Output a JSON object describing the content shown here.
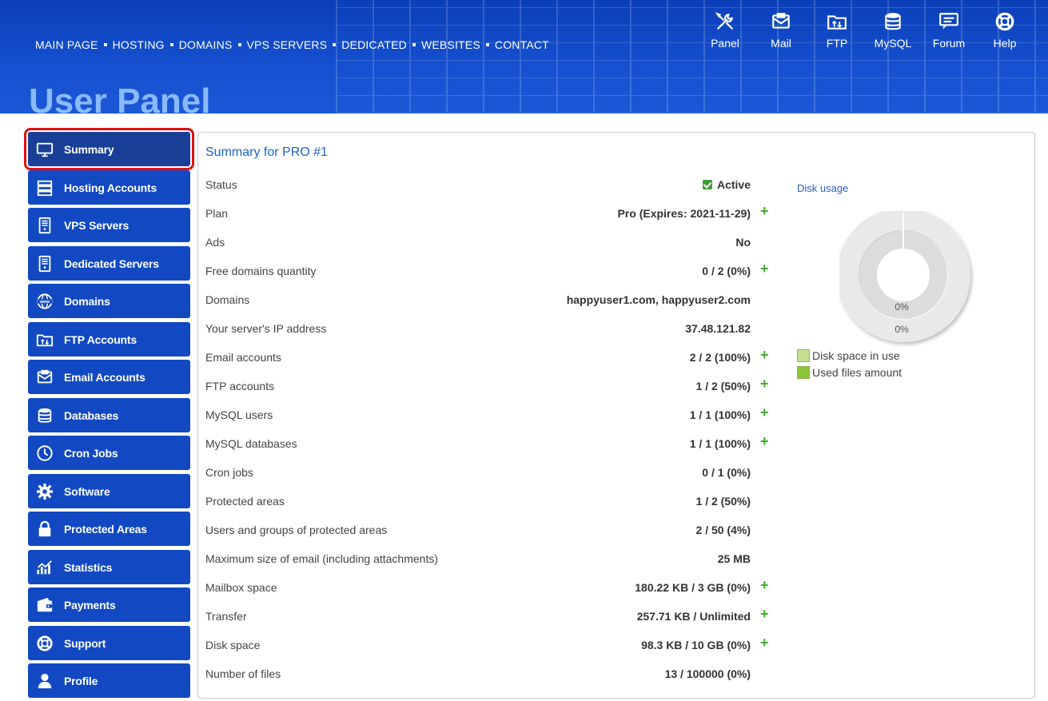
{
  "header": {
    "nav": [
      "MAIN PAGE",
      "HOSTING",
      "DOMAINS",
      "VPS SERVERS",
      "DEDICATED",
      "WEBSITES",
      "CONTACT"
    ],
    "quick_links": [
      {
        "label": "Panel",
        "icon": "tools-icon"
      },
      {
        "label": "Mail",
        "icon": "mail-icon"
      },
      {
        "label": "FTP",
        "icon": "ftp-folder-icon"
      },
      {
        "label": "MySQL",
        "icon": "database-icon"
      },
      {
        "label": "Forum",
        "icon": "forum-icon"
      },
      {
        "label": "Help",
        "icon": "lifebuoy-icon"
      }
    ],
    "page_title": "User Panel"
  },
  "sidebar": {
    "items": [
      {
        "label": "Summary",
        "icon": "monitor-icon",
        "active": true
      },
      {
        "label": "Hosting Accounts",
        "icon": "server-stack-icon"
      },
      {
        "label": "VPS Servers",
        "icon": "server-tower-icon"
      },
      {
        "label": "Dedicated Servers",
        "icon": "server-tower-icon"
      },
      {
        "label": "Domains",
        "icon": "globe-www-icon"
      },
      {
        "label": "FTP Accounts",
        "icon": "ftp-folder-icon"
      },
      {
        "label": "Email Accounts",
        "icon": "mail-icon"
      },
      {
        "label": "Databases",
        "icon": "database-icon"
      },
      {
        "label": "Cron Jobs",
        "icon": "clock-icon"
      },
      {
        "label": "Software",
        "icon": "gear-icon"
      },
      {
        "label": "Protected Areas",
        "icon": "lock-icon"
      },
      {
        "label": "Statistics",
        "icon": "chart-icon"
      },
      {
        "label": "Payments",
        "icon": "wallet-icon"
      },
      {
        "label": "Support",
        "icon": "lifebuoy-icon"
      },
      {
        "label": "Profile",
        "icon": "user-icon"
      }
    ]
  },
  "summary": {
    "title": "Summary for PRO #1",
    "rows": [
      {
        "label": "Status",
        "value": "Active",
        "check": true
      },
      {
        "label": "Plan",
        "value": "Pro (Expires: 2021-11-29)",
        "plus": true
      },
      {
        "label": "Ads",
        "value": "No"
      },
      {
        "label": "Free domains quantity",
        "value": "0 / 2 (0%)",
        "plus": true
      },
      {
        "label": "Domains",
        "value": "happyuser1.com, happyuser2.com"
      },
      {
        "label": "Your server's IP address",
        "value": "37.48.121.82"
      },
      {
        "label": "Email accounts",
        "value": "2 / 2 (100%)",
        "plus": true
      },
      {
        "label": "FTP accounts",
        "value": "1 / 2 (50%)",
        "plus": true
      },
      {
        "label": "MySQL users",
        "value": "1 / 1 (100%)",
        "plus": true
      },
      {
        "label": "MySQL databases",
        "value": "1 / 1 (100%)",
        "plus": true
      },
      {
        "label": "Cron jobs",
        "value": "0 / 1 (0%)"
      },
      {
        "label": "Protected areas",
        "value": "1 / 2 (50%)"
      },
      {
        "label": "Users and groups of protected areas",
        "value": "2 / 50 (4%)"
      },
      {
        "label": "Maximum size of email (including attachments)",
        "value": "25 MB"
      },
      {
        "label": "Mailbox space",
        "value": "180.22 KB / 3 GB (0%)",
        "plus": true
      },
      {
        "label": "Transfer",
        "value": "257.71 KB / Unlimited",
        "plus": true
      },
      {
        "label": "Disk space",
        "value": "98.3 KB / 10 GB (0%)",
        "plus": true
      },
      {
        "label": "Number of files",
        "value": "13 / 100000 (0%)"
      }
    ]
  },
  "disk_usage": {
    "title": "Disk usage",
    "inner_label": "0%",
    "outer_label": "0%",
    "legend": [
      {
        "label": "Disk space in use",
        "color": "#c5df8f"
      },
      {
        "label": "Used files amount",
        "color": "#8cc43a"
      }
    ]
  },
  "colors": {
    "brand_blue": "#1249c3",
    "active_outline": "#e01212",
    "plus_green": "#3fae2a"
  }
}
